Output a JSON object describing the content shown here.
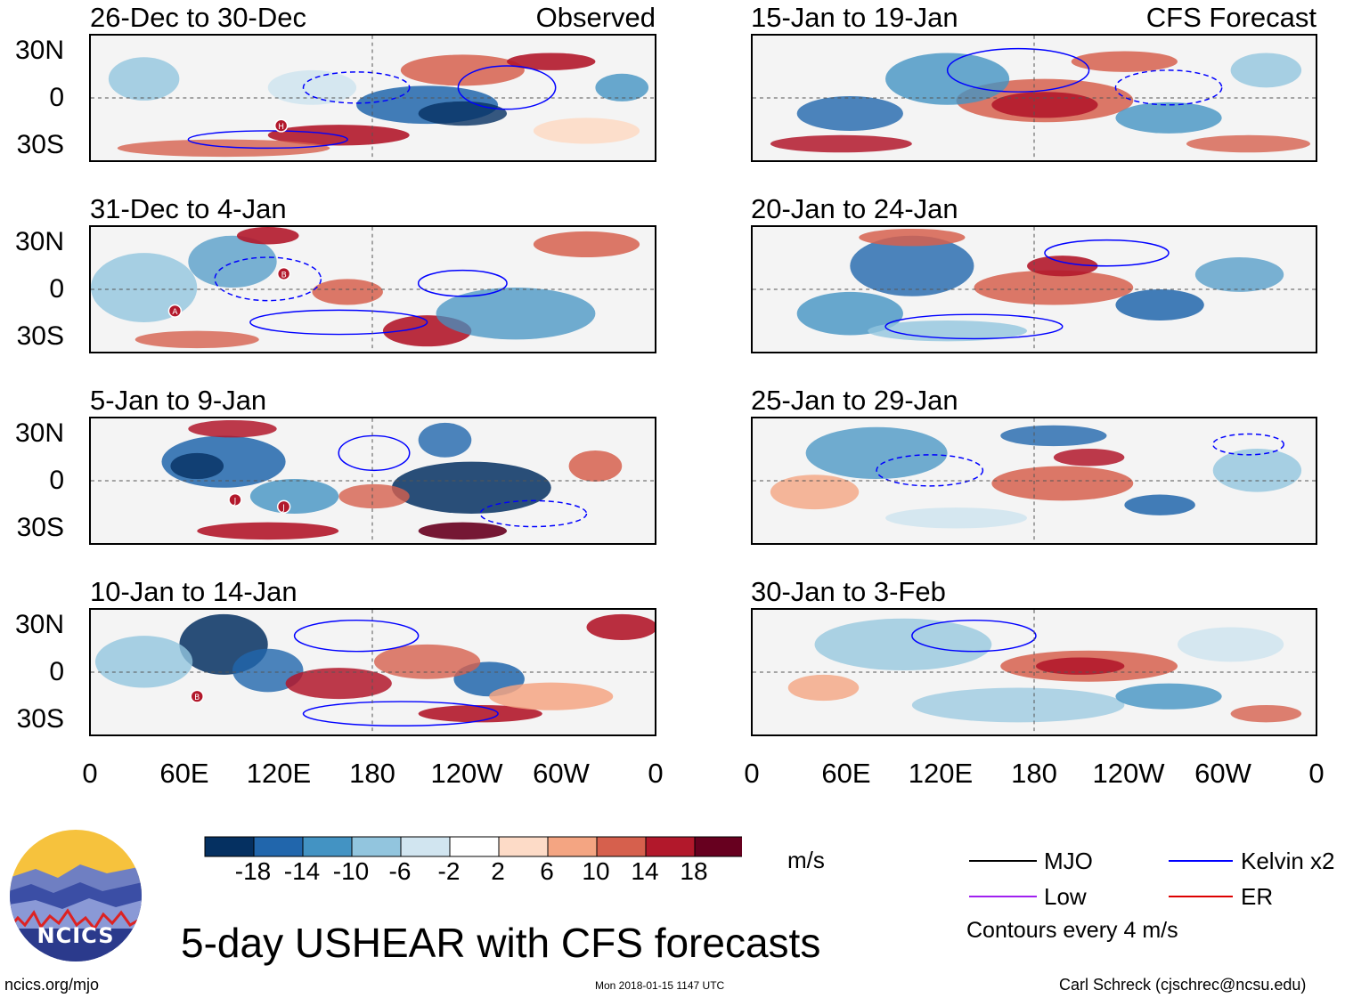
{
  "observed_tag": "Observed",
  "forecast_tag": "CFS Forecast",
  "panels": {
    "obs": [
      "26-Dec to 30-Dec",
      "31-Dec to 4-Jan",
      "5-Jan to 9-Jan",
      "10-Jan to 14-Jan"
    ],
    "fcst": [
      "15-Jan to 19-Jan",
      "20-Jan to 24-Jan",
      "25-Jan to 29-Jan",
      "30-Jan to 3-Feb"
    ]
  },
  "lat_labels": [
    "30N",
    "0",
    "30S"
  ],
  "lon_labels": [
    "0",
    "60E",
    "120E",
    "180",
    "120W",
    "60W",
    "0"
  ],
  "colorbar": {
    "colors": [
      "#053061",
      "#2166ac",
      "#4393c3",
      "#92c5de",
      "#d1e5f0",
      "#ffffff",
      "#fddbc7",
      "#f4a582",
      "#d6604d",
      "#b2182b",
      "#67001f"
    ],
    "labels": [
      "-18",
      "-14",
      "-10",
      "-6",
      "-2",
      "2",
      "6",
      "10",
      "14",
      "18"
    ],
    "units": "m/s"
  },
  "legend": {
    "mjo": "MJO",
    "mjo_color": "#000000",
    "kelvin": "Kelvin x2",
    "kelvin_color": "#0000ff",
    "low": "Low",
    "low_color": "#a020f0",
    "er": "ER",
    "er_color": "#dd0000",
    "contour_note": "Contours every 4 m/s"
  },
  "title": "5-day USHEAR with CFS forecasts",
  "logo_text": "NCICS",
  "url": "ncics.org/mjo",
  "timestamp": "Mon 2018-01-15 1147 UTC",
  "credit": "Carl Schreck (cjschrec@ncsu.edu)",
  "storm_markers": {
    "obs0": [
      "H"
    ],
    "obs1": [
      "B",
      "A"
    ],
    "obs2": [
      "J",
      "J"
    ],
    "obs3": [
      "B"
    ]
  }
}
